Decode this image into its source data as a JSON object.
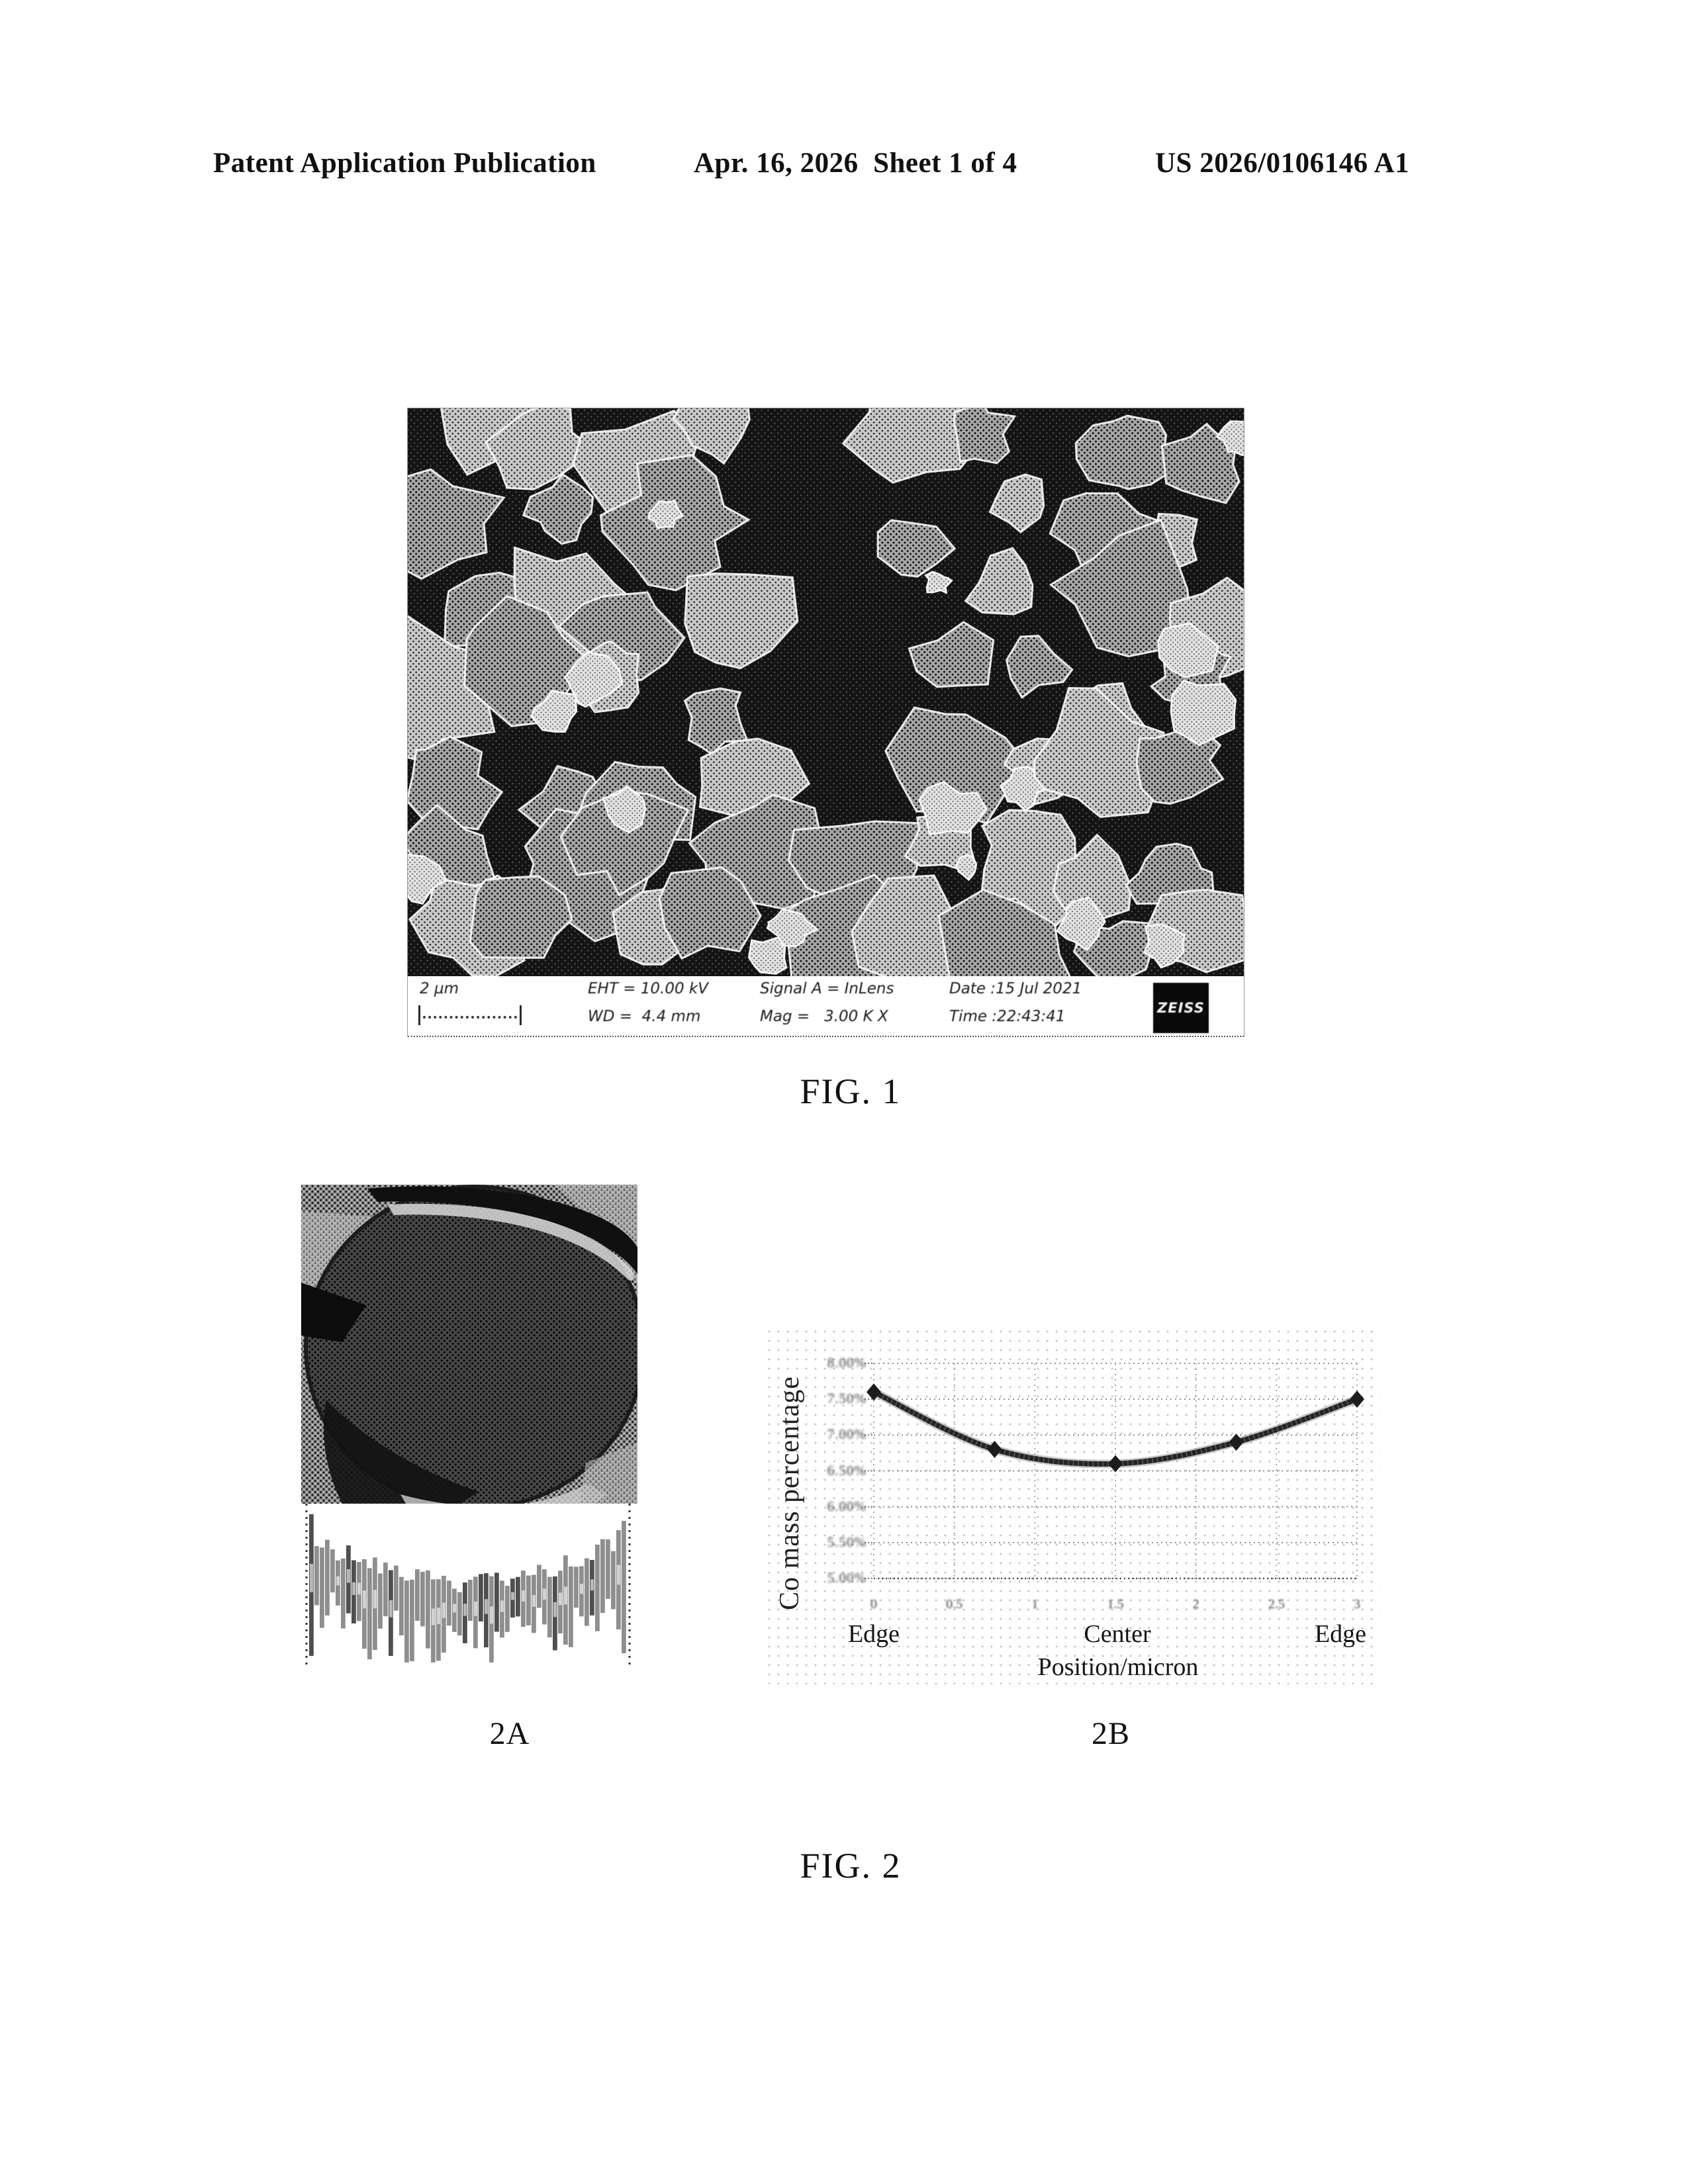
{
  "header": {
    "left": "Patent Application Publication",
    "center": "Apr. 16, 2026  Sheet 1 of 4",
    "right": "US 2026/0106146 A1"
  },
  "fig1": {
    "caption": "FIG. 1",
    "sem_bar": {
      "scale_label": "2 µm",
      "eht": "EHT = 10.00 kV",
      "wd": "WD =  4.4 mm",
      "signal": "Signal A = InLens",
      "mag": "Mag =   3.00 K X",
      "date": "Date :15 Jul 2021",
      "time": "Time :22:43:41",
      "brand": "ZEISS"
    }
  },
  "fig2": {
    "caption": "FIG. 2",
    "panel_a_label": "2A",
    "panel_b_label": "2B"
  },
  "chart_data": {
    "type": "line",
    "title": "",
    "xlabel": "Position/micron",
    "ylabel": "Co mass percentage",
    "x": [
      0,
      0.75,
      1.5,
      2.25,
      3
    ],
    "values": [
      7.6,
      6.8,
      6.6,
      6.9,
      7.5
    ],
    "series_name": "Co mass percentage across particle cross-section",
    "x_tick_labels": [
      "0",
      "0.5",
      "1",
      "1.5",
      "2",
      "2.5",
      "3"
    ],
    "y_tick_labels": [
      "8.00%",
      "7.50%",
      "7.00%",
      "6.50%",
      "6.00%",
      "5.50%",
      "5.00%"
    ],
    "y_axis_top_value": 8.0,
    "y_axis_step": 0.5,
    "x_range": [
      0,
      3
    ],
    "x_annotations": [
      "Edge",
      "Center",
      "Edge"
    ],
    "marker": "diamond",
    "grid": "dotted",
    "legend": "none"
  }
}
